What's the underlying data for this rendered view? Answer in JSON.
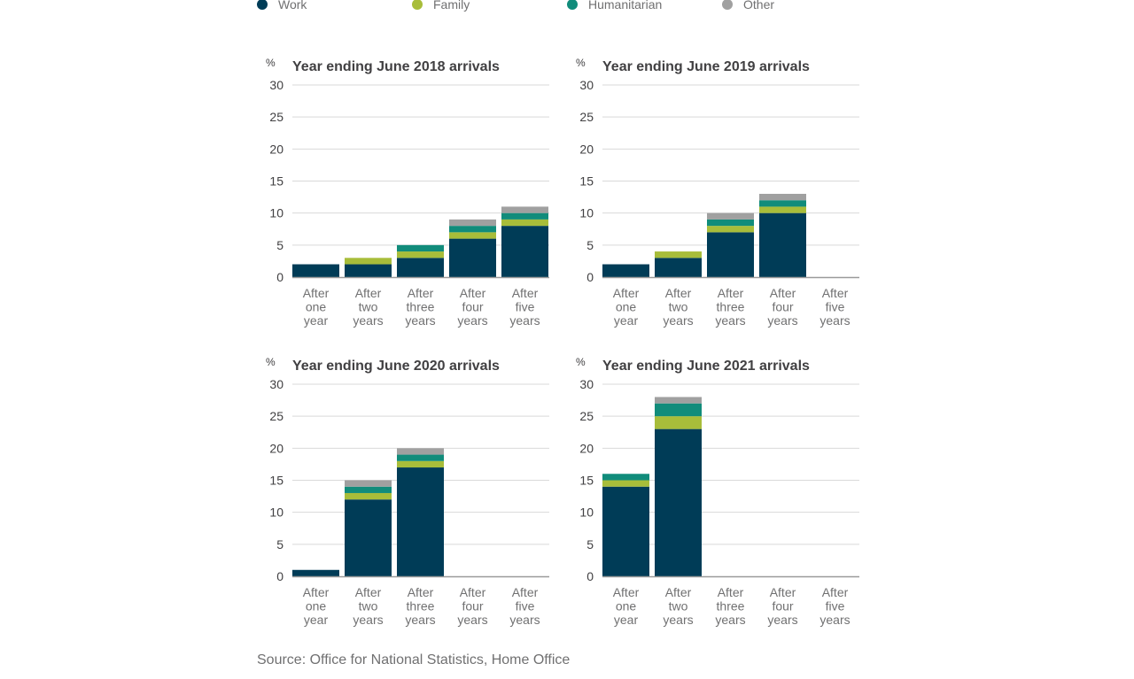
{
  "legend": {
    "items": [
      {
        "label": "Work",
        "color": "#003c57"
      },
      {
        "label": "Family",
        "color": "#a8bd3a"
      },
      {
        "label": "Humanitarian",
        "color": "#118c7b"
      },
      {
        "label": "Other",
        "color": "#a0a0a0"
      }
    ]
  },
  "source": "Source: Office for National Statistics, Home Office",
  "chart_data": [
    {
      "type": "bar",
      "stacked": true,
      "title": "Year ending June 2018 arrivals",
      "ylabel": "%",
      "ylim": [
        0,
        30
      ],
      "yticks": [
        0,
        5,
        10,
        15,
        20,
        25,
        30
      ],
      "categories": [
        [
          "After",
          "one",
          "year"
        ],
        [
          "After",
          "two",
          "years"
        ],
        [
          "After",
          "three",
          "years"
        ],
        [
          "After",
          "four",
          "years"
        ],
        [
          "After",
          "five",
          "years"
        ]
      ],
      "series": [
        {
          "name": "Work",
          "values": [
            2,
            2,
            3,
            6,
            8
          ]
        },
        {
          "name": "Family",
          "values": [
            0,
            1,
            1,
            1,
            1
          ]
        },
        {
          "name": "Humanitarian",
          "values": [
            0,
            0,
            1,
            1,
            1
          ]
        },
        {
          "name": "Other",
          "values": [
            0,
            0,
            0,
            1,
            1
          ]
        }
      ]
    },
    {
      "type": "bar",
      "stacked": true,
      "title": "Year ending June 2019 arrivals",
      "ylabel": "%",
      "ylim": [
        0,
        30
      ],
      "yticks": [
        0,
        5,
        10,
        15,
        20,
        25,
        30
      ],
      "categories": [
        [
          "After",
          "one",
          "year"
        ],
        [
          "After",
          "two",
          "years"
        ],
        [
          "After",
          "three",
          "years"
        ],
        [
          "After",
          "four",
          "years"
        ],
        [
          "After",
          "five",
          "years"
        ]
      ],
      "series": [
        {
          "name": "Work",
          "values": [
            2,
            3,
            7,
            10,
            0
          ]
        },
        {
          "name": "Family",
          "values": [
            0,
            1,
            1,
            1,
            0
          ]
        },
        {
          "name": "Humanitarian",
          "values": [
            0,
            0,
            1,
            1,
            0
          ]
        },
        {
          "name": "Other",
          "values": [
            0,
            0,
            1,
            1,
            0
          ]
        }
      ]
    },
    {
      "type": "bar",
      "stacked": true,
      "title": "Year ending June 2020 arrivals",
      "ylabel": "%",
      "ylim": [
        0,
        30
      ],
      "yticks": [
        0,
        5,
        10,
        15,
        20,
        25,
        30
      ],
      "categories": [
        [
          "After",
          "one",
          "year"
        ],
        [
          "After",
          "two",
          "years"
        ],
        [
          "After",
          "three",
          "years"
        ],
        [
          "After",
          "four",
          "years"
        ],
        [
          "After",
          "five",
          "years"
        ]
      ],
      "series": [
        {
          "name": "Work",
          "values": [
            1,
            12,
            17,
            0,
            0
          ]
        },
        {
          "name": "Family",
          "values": [
            0,
            1,
            1,
            0,
            0
          ]
        },
        {
          "name": "Humanitarian",
          "values": [
            0,
            1,
            1,
            0,
            0
          ]
        },
        {
          "name": "Other",
          "values": [
            0,
            1,
            1,
            0,
            0
          ]
        }
      ]
    },
    {
      "type": "bar",
      "stacked": true,
      "title": "Year ending June 2021 arrivals",
      "ylabel": "%",
      "ylim": [
        0,
        30
      ],
      "yticks": [
        0,
        5,
        10,
        15,
        20,
        25,
        30
      ],
      "categories": [
        [
          "After",
          "one",
          "year"
        ],
        [
          "After",
          "two",
          "years"
        ],
        [
          "After",
          "three",
          "years"
        ],
        [
          "After",
          "four",
          "years"
        ],
        [
          "After",
          "five",
          "years"
        ]
      ],
      "series": [
        {
          "name": "Work",
          "values": [
            14,
            23,
            0,
            0,
            0
          ]
        },
        {
          "name": "Family",
          "values": [
            1,
            2,
            0,
            0,
            0
          ]
        },
        {
          "name": "Humanitarian",
          "values": [
            1,
            2,
            0,
            0,
            0
          ]
        },
        {
          "name": "Other",
          "values": [
            0,
            1,
            0,
            0,
            0
          ]
        }
      ]
    }
  ]
}
